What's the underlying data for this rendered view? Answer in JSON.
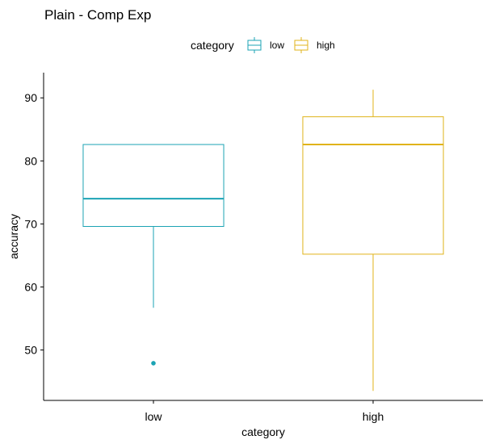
{
  "chart_data": {
    "type": "boxplot",
    "title": "Plain - Comp Exp",
    "xlabel": "category",
    "ylabel": "accuracy",
    "ylim": [
      42,
      94
    ],
    "yticks": [
      50,
      60,
      70,
      80,
      90
    ],
    "categories": [
      "low",
      "high"
    ],
    "legend": {
      "title": "category",
      "position": "top",
      "entries": [
        "low",
        "high"
      ]
    },
    "boxes": [
      {
        "category": "low",
        "color": "#1ba3b4",
        "whisker_low": 56.7,
        "q1": 69.6,
        "median": 74.0,
        "q3": 82.6,
        "whisker_high": 82.6,
        "outliers": [
          47.9
        ]
      },
      {
        "category": "high",
        "color": "#e0b31a",
        "whisker_low": 43.5,
        "q1": 65.2,
        "median": 82.6,
        "q3": 87.0,
        "whisker_high": 91.3,
        "outliers": []
      }
    ],
    "grid": false
  }
}
